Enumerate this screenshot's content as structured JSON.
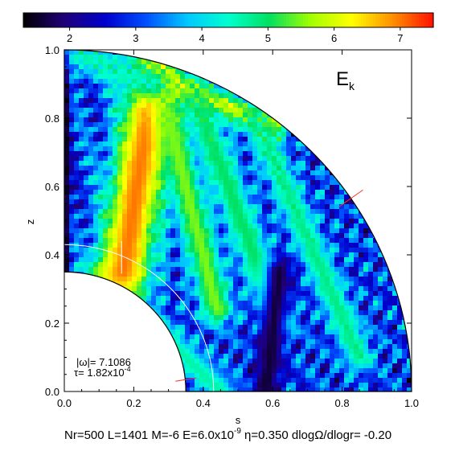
{
  "figure": {
    "panel_label": "E",
    "panel_label_sub": "k",
    "omega_label": "|ω|= 7.1086",
    "tau_prefix": "τ= 1.82x10",
    "tau_exp": "-4",
    "footer_parts": {
      "a": "Nr=500 L=1401 M=-6 E=6.0x10",
      "a_exp": "-9",
      "b": " η=0.350 dlogΩ/dlogr= -0.20"
    }
  },
  "chart_data": {
    "type": "heatmap",
    "title": "",
    "xlabel": "s",
    "ylabel": "z",
    "xlim": [
      0.0,
      1.0
    ],
    "ylim": [
      0.0,
      1.0
    ],
    "xticks": [
      "0.0",
      "0.2",
      "0.4",
      "0.6",
      "0.8",
      "1.0"
    ],
    "yticks": [
      "0.0",
      "0.2",
      "0.4",
      "0.6",
      "0.8",
      "1.0"
    ],
    "domain": {
      "shape": "spherical-shell-quadrant",
      "inner_radius": 0.35,
      "outer_radius": 1.0
    },
    "white_circle_radius": 0.43,
    "colorbar": {
      "range": [
        1.3,
        7.5
      ],
      "ticks": [
        "2",
        "3",
        "4",
        "5",
        "6",
        "7"
      ],
      "colormap": [
        "#000000",
        "#20007a",
        "#0000cc",
        "#0050ff",
        "#00c8ff",
        "#00ffd0",
        "#00e060",
        "#a0ff00",
        "#ffff00",
        "#ff9000",
        "#ff1000"
      ]
    },
    "features": [
      {
        "name": "inner-ray-band",
        "from": [
          0.1,
          0.35
        ],
        "to": [
          0.45,
          0.0
        ],
        "width": 0.05,
        "value": 4.6,
        "power": 1.5
      },
      {
        "name": "main-red-band",
        "from": [
          0.17,
          0.35
        ],
        "to": [
          0.26,
          0.92
        ],
        "width": 0.08,
        "value": 7.0,
        "power": 1.0
      },
      {
        "name": "outer-red-band",
        "from": [
          0.26,
          0.92
        ],
        "to": [
          0.6,
          0.78
        ],
        "width": 0.04,
        "value": 6.0,
        "power": 1.0
      },
      {
        "name": "yellow-band",
        "from": [
          0.3,
          0.8
        ],
        "to": [
          0.44,
          0.24
        ],
        "width": 0.05,
        "value": 5.5,
        "power": 1.2
      },
      {
        "name": "green-band",
        "from": [
          0.38,
          0.85
        ],
        "to": [
          0.62,
          0.2
        ],
        "width": 0.05,
        "value": 5.0,
        "power": 1.2
      },
      {
        "name": "outer-green-band",
        "from": [
          0.55,
          0.8
        ],
        "to": [
          0.85,
          0.1
        ],
        "width": 0.04,
        "value": 4.8,
        "power": 1.0
      },
      {
        "name": "low-deep-blue",
        "from": [
          0.58,
          0.0
        ],
        "to": [
          0.62,
          0.35
        ],
        "width": 0.05,
        "value": 1.6,
        "power": 1.6
      },
      {
        "name": "axis-low",
        "from": [
          0.0,
          0.35
        ],
        "to": [
          0.0,
          1.0
        ],
        "width": 0.02,
        "value": 1.3,
        "power": 1.5
      },
      {
        "name": "top-cyan",
        "from": [
          0.05,
          0.98
        ],
        "to": [
          0.25,
          0.9
        ],
        "width": 0.05,
        "value": 4.5,
        "power": 1.0
      }
    ]
  }
}
